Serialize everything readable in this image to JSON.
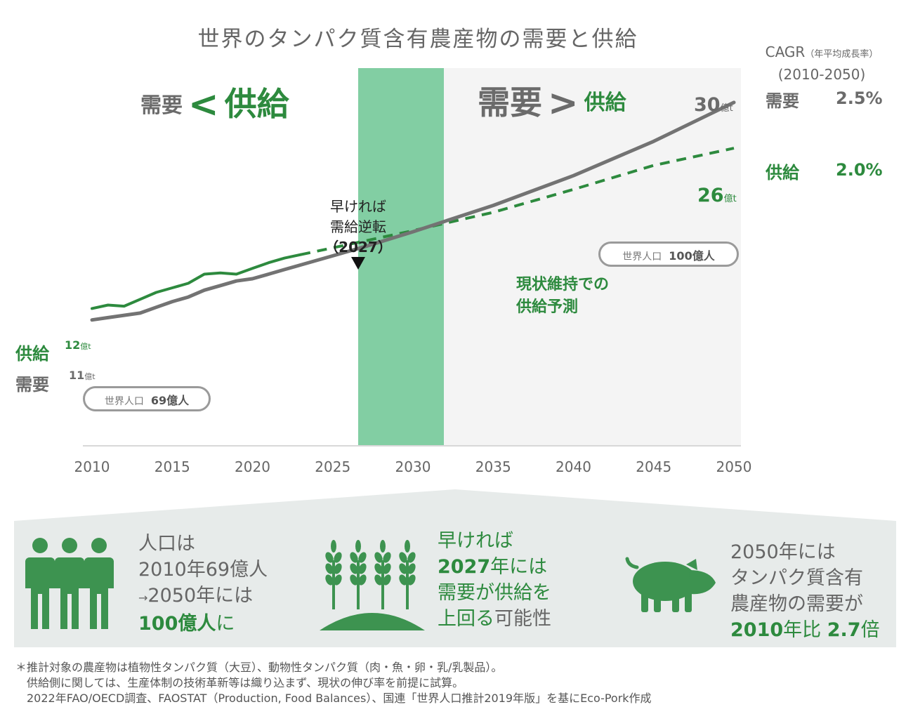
{
  "title": "世界のタンパク質含有農産物の需要と供給",
  "cagr": {
    "header_main": "CAGR",
    "header_note": "（年平均成長率）",
    "period": "(2010-2050)",
    "demand_label": "需要",
    "demand_value": "2.5%",
    "supply_label": "供給",
    "supply_value": "2.0%"
  },
  "zones": {
    "left_demand": "需要",
    "left_symbol": "<",
    "left_supply": "供給",
    "right_demand": "需要",
    "right_symbol": ">",
    "right_supply": "供給"
  },
  "end_labels": {
    "demand_value": "30",
    "demand_unit": "億t",
    "supply_value": "26",
    "supply_unit": "億t"
  },
  "start_labels": {
    "supply_side": "供給",
    "demand_side": "需要",
    "supply_value": "12",
    "supply_unit": "億t",
    "demand_value": "11",
    "demand_unit": "億t"
  },
  "inversion": {
    "line1": "早ければ",
    "line2": "需給逆転",
    "line3": "（2027）"
  },
  "population_2010": {
    "label": "世界人口",
    "value": "69億人"
  },
  "population_2050": {
    "label": "世界人口",
    "value": "100億人"
  },
  "forecast": {
    "line1": "現状維持での",
    "line2": "供給予測"
  },
  "colors": {
    "demand": "#737373",
    "supply": "#2d8a3e",
    "band": "#82ceA3",
    "future_bg": "#f4f4f4",
    "panel": "#e7ebea",
    "icon": "#3d9350"
  },
  "chart_data": {
    "type": "line",
    "title": "世界のタンパク質含有農産物の需要と供給",
    "xlabel": "",
    "ylabel": "",
    "unit": "億t",
    "xlim": [
      2010,
      2050
    ],
    "ylim": [
      0,
      33
    ],
    "xticks": [
      "2010",
      "2015",
      "2020",
      "2025",
      "2030",
      "2035",
      "2040",
      "2045",
      "2050"
    ],
    "highlight_band": [
      2027,
      2032
    ],
    "inversion_year": 2027,
    "series": [
      {
        "name": "需要",
        "style": "solid",
        "x": [
          2010,
          2011,
          2012,
          2013,
          2014,
          2015,
          2016,
          2017,
          2018,
          2019,
          2020,
          2021,
          2022,
          2023,
          2025,
          2027,
          2030,
          2035,
          2040,
          2045,
          2050
        ],
        "values": [
          11.0,
          11.2,
          11.4,
          11.6,
          12.1,
          12.6,
          13.0,
          13.6,
          14.0,
          14.4,
          14.6,
          15.0,
          15.4,
          15.8,
          16.6,
          17.4,
          18.7,
          21.0,
          23.6,
          26.6,
          30.0
        ]
      },
      {
        "name": "供給",
        "style": "solid",
        "x": [
          2010,
          2011,
          2012,
          2013,
          2014,
          2015,
          2016,
          2017,
          2018,
          2019,
          2020,
          2021,
          2022,
          2023
        ],
        "values": [
          12.0,
          12.3,
          12.2,
          12.8,
          13.4,
          13.8,
          14.2,
          15.0,
          15.1,
          15.0,
          15.5,
          16.0,
          16.4,
          16.7
        ]
      },
      {
        "name": "現状維持での供給予測",
        "style": "dashed",
        "x": [
          2023,
          2025,
          2027,
          2030,
          2035,
          2040,
          2045,
          2050
        ],
        "values": [
          16.7,
          17.3,
          17.9,
          18.8,
          20.4,
          22.4,
          24.5,
          26.0
        ]
      }
    ]
  },
  "panel": {
    "item1": {
      "line1": "人口は",
      "line2": "2010年69億人",
      "line3_arrow": "→",
      "line3": "2050年には",
      "line4_bold": "100億人",
      "line4": "に"
    },
    "item2": {
      "line1": "早ければ",
      "line2_bold": "2027",
      "line2": "年には",
      "line3": "需要が供給を",
      "line4": "上回る",
      "line4_rest": "可能性"
    },
    "item3": {
      "line1": "2050年には",
      "line2": "タンパク質含有",
      "line3": "農産物の需要が",
      "line4_bold": "2010",
      "line4_mid": "年比",
      "line4_bold2": "2.7",
      "line4_end": "倍"
    }
  },
  "footnote": {
    "line1": "＊推計対象の農産物は植物性タンパク質（大豆）、動物性タンパク質（肉・魚・卵・乳/乳製品）。",
    "line2": "供給側に関しては、生産体制の技術革新等は織り込まず、現状の伸び率を前提に試算。",
    "line3": "2022年FAO/OECD調査、FAOSTAT（Production, Food Balances）、国連「世界人口推計2019年版」を基にEco-Pork作成"
  }
}
